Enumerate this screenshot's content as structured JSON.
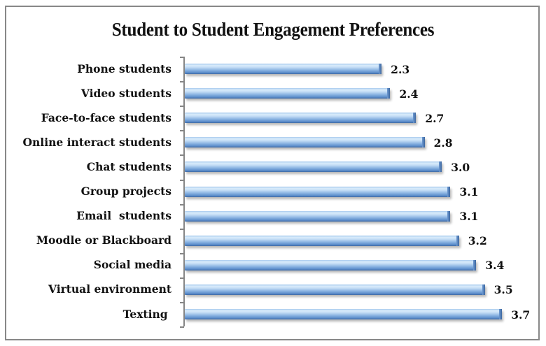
{
  "chart_data": {
    "type": "bar",
    "orientation": "horizontal",
    "title": "Student to Student Engagement Preferences",
    "xlabel": "",
    "ylabel": "",
    "categories": [
      "Phone students",
      "Video students",
      "Face-to-face students",
      "Online interact students",
      "Chat students",
      "Group projects",
      "Email  students",
      "Moodle or Blackboard",
      "Social media",
      "Virtual environment",
      "Texting "
    ],
    "values": [
      2.3,
      2.4,
      2.7,
      2.8,
      3.0,
      3.1,
      3.1,
      3.2,
      3.4,
      3.5,
      3.7
    ],
    "value_labels": [
      "2.3",
      "2.4",
      "2.7",
      "2.8",
      "3.0",
      "3.1",
      "3.1",
      "3.2",
      "3.4",
      "3.5",
      "3.7"
    ],
    "xlim": [
      0,
      4.2
    ],
    "grid": false,
    "legend": null,
    "bar_color": "#6f9bd2"
  }
}
